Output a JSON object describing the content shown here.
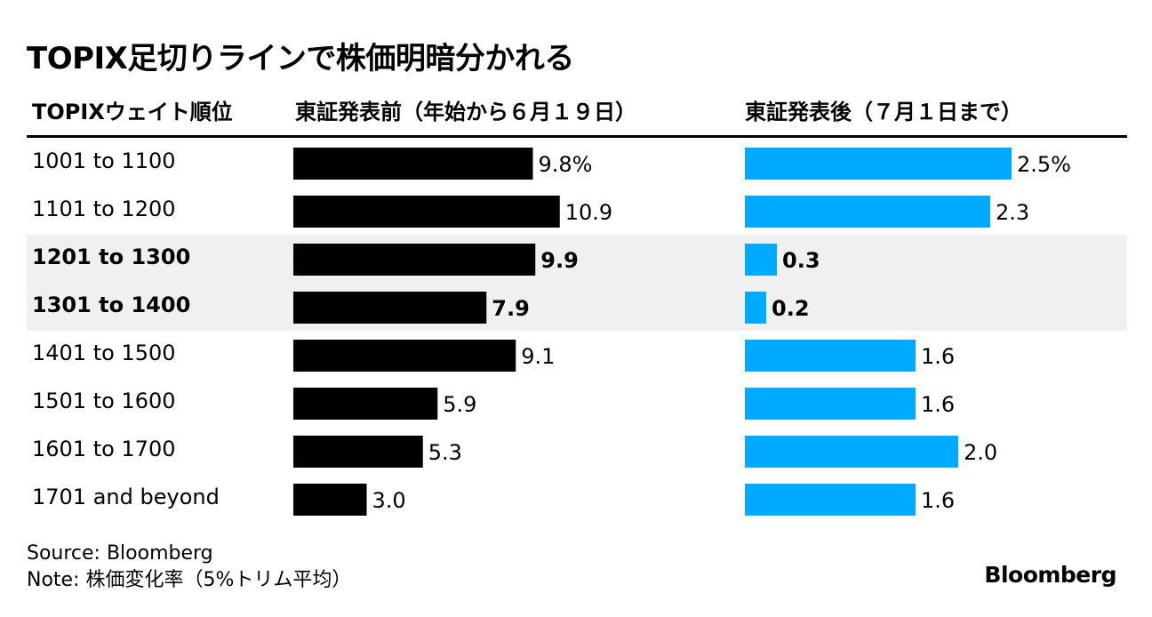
{
  "title": "TOPIX足切りラインで株価明暗分かれる",
  "columns": {
    "label_header": "TOPIXウェイト順位",
    "before_header": "東証発表前（年始から６月１９日）",
    "after_header": "東証発表後（７月１日まで）"
  },
  "colors": {
    "before": "#000000",
    "after": "#00aaff",
    "highlight": "#f0f0f0"
  },
  "chart_data": {
    "type": "bar",
    "orientation": "horizontal",
    "categories": [
      "1001 to 1100",
      "1101 to 1200",
      "1201 to 1300",
      "1301 to 1400",
      "1401 to 1500",
      "1501 to 1600",
      "1601 to 1700",
      "1701 and beyond"
    ],
    "highlighted_categories": [
      "1201 to 1300",
      "1301 to 1400"
    ],
    "series": [
      {
        "name": "東証発表前（年始から６月１９日）",
        "values": [
          9.8,
          10.9,
          9.9,
          7.9,
          9.1,
          5.9,
          5.3,
          3.0
        ],
        "value_labels": [
          "9.8%",
          "10.9",
          "9.9",
          "7.9",
          "9.1",
          "5.9",
          "5.3",
          "3.0"
        ]
      },
      {
        "name": "東証発表後（７月１日まで）",
        "values": [
          2.5,
          2.3,
          0.3,
          0.2,
          1.6,
          1.6,
          2.0,
          1.6
        ],
        "value_labels": [
          "2.5%",
          "2.3",
          "0.3",
          "0.2",
          "1.6",
          "1.6",
          "2.0",
          "1.6"
        ]
      }
    ],
    "unit": "%"
  },
  "footer": {
    "source": "Source: Bloomberg",
    "note": "Note: 株価変化率（5%トリム平均）",
    "logo": "Bloomberg"
  }
}
